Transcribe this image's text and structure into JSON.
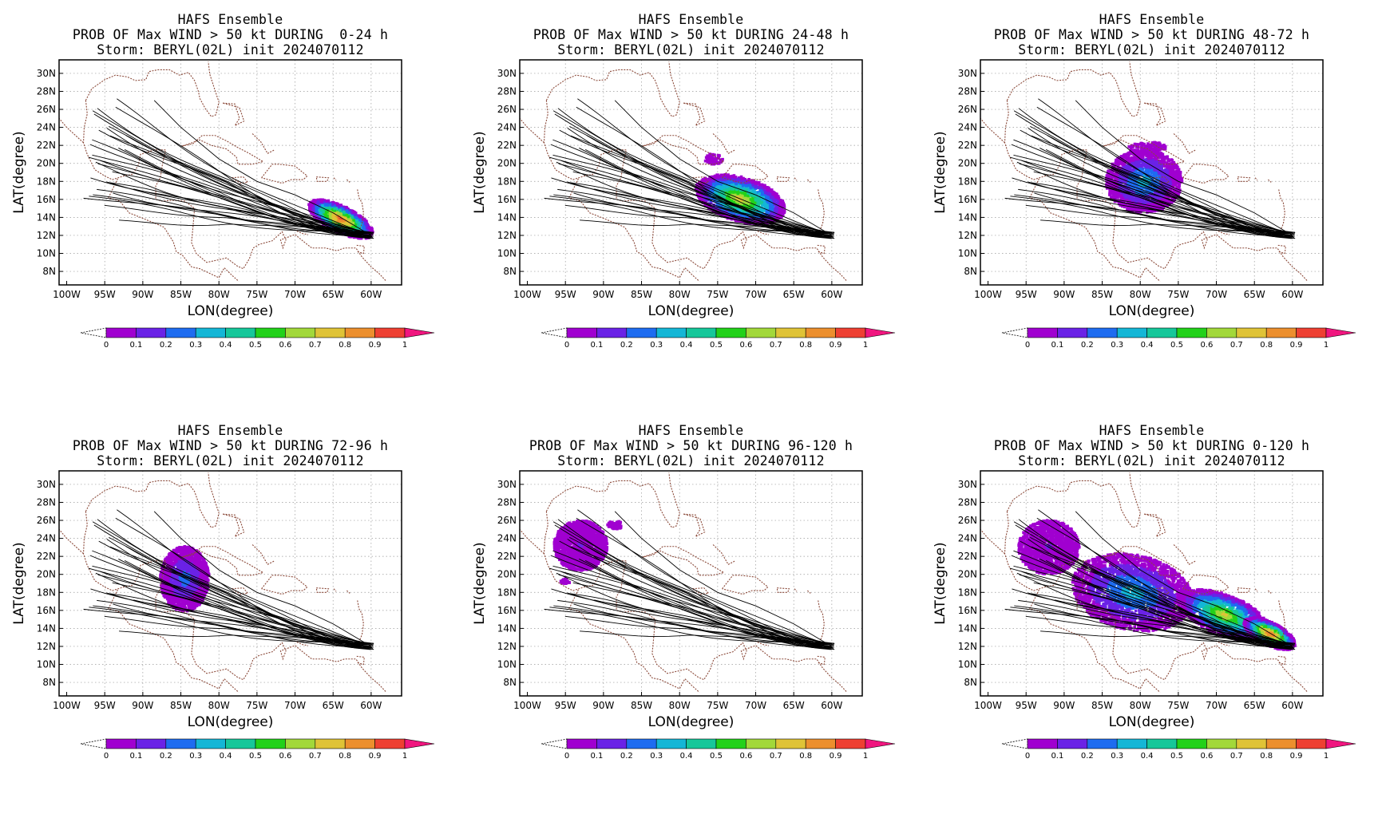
{
  "figure": {
    "panels": [
      {
        "title": "HAFS Ensemble",
        "subtitle": "PROB OF Max WIND > 50 kt DURING  0-24 h",
        "storm_line": "Storm: BERYL(02L) init 2024070112",
        "period": "0-24 h"
      },
      {
        "title": "HAFS Ensemble",
        "subtitle": "PROB OF Max WIND > 50 kt DURING 24-48 h",
        "storm_line": "Storm: BERYL(02L) init 2024070112",
        "period": "24-48 h"
      },
      {
        "title": "HAFS Ensemble",
        "subtitle": "PROB OF Max WIND > 50 kt DURING 48-72 h",
        "storm_line": "Storm: BERYL(02L) init 2024070112",
        "period": "48-72 h"
      },
      {
        "title": "HAFS Ensemble",
        "subtitle": "PROB OF Max WIND > 50 kt DURING 72-96 h",
        "storm_line": "Storm: BERYL(02L) init 2024070112",
        "period": "72-96 h"
      },
      {
        "title": "HAFS Ensemble",
        "subtitle": "PROB OF Max WIND > 50 kt DURING 96-120 h",
        "storm_line": "Storm: BERYL(02L) init 2024070112",
        "period": "96-120 h"
      },
      {
        "title": "HAFS Ensemble",
        "subtitle": "PROB OF Max WIND > 50 kt DURING 0-120 h",
        "storm_line": "Storm: BERYL(02L) init 2024070112",
        "period": "0-120 h"
      }
    ],
    "x_axis_label": "LON(degree)",
    "y_axis_label": "LAT(degree)",
    "lon_ticks": [
      "100W",
      "95W",
      "90W",
      "85W",
      "80W",
      "75W",
      "70W",
      "65W",
      "60W"
    ],
    "lat_ticks": [
      "30N",
      "28N",
      "26N",
      "24N",
      "22N",
      "20N",
      "18N",
      "16N",
      "14N",
      "12N",
      "10N",
      "8N"
    ],
    "lon_range": [
      -101,
      -56
    ],
    "lat_range": [
      6.5,
      31.5
    ],
    "colorbar": {
      "labels": [
        "0",
        "0.1",
        "0.2",
        "0.3",
        "0.4",
        "0.5",
        "0.6",
        "0.7",
        "0.8",
        "0.9",
        "1"
      ],
      "colors": [
        "#a000d0",
        "#6a22e6",
        "#1e6cf0",
        "#14b6d6",
        "#16c79a",
        "#22d11a",
        "#a2d83a",
        "#dfc337",
        "#ec8f2e",
        "#ee4032",
        "#f0167f"
      ]
    },
    "track_color": "#000000",
    "coast_color": "#8b4a3a",
    "grid": "dotted"
  },
  "chart_data": {
    "type": "map",
    "initial_position": {
      "lon": -60,
      "lat": 12
    },
    "ensemble_track_count": 31,
    "probability_regions": [
      {
        "period": "0-24 h",
        "center_lon": -64,
        "center_lat": 13.8,
        "peak_prob": 0.95
      },
      {
        "period": "24-48 h",
        "center_lon": -72,
        "center_lat": 16,
        "peak_prob": 0.75
      },
      {
        "period": "48-72 h",
        "center_lon": -79.5,
        "center_lat": 18,
        "peak_prob": 0.35
      },
      {
        "period": "72-96 h",
        "center_lon": -84.5,
        "center_lat": 19,
        "peak_prob": 0.25
      },
      {
        "period": "96-120 h",
        "center_lon": -92.5,
        "center_lat": 23,
        "peak_prob": 0.1
      },
      {
        "period": "0-120 h",
        "center_lon": -75,
        "center_lat": 17,
        "peak_prob": 0.95
      }
    ]
  }
}
